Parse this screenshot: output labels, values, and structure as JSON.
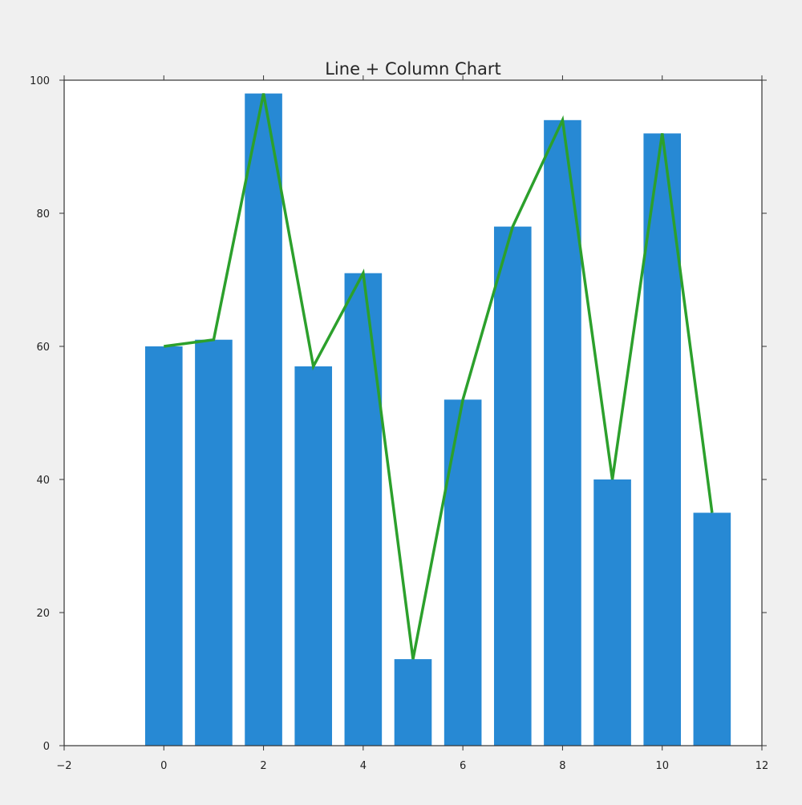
{
  "chart_data": {
    "type": "bar",
    "title": "Line + Column Chart",
    "xlabel": "",
    "ylabel": "",
    "xlim": [
      -2,
      12
    ],
    "ylim": [
      0,
      100
    ],
    "x_ticks": [
      -2,
      0,
      2,
      4,
      6,
      8,
      10,
      12
    ],
    "y_ticks": [
      0,
      20,
      40,
      60,
      80,
      100
    ],
    "grid": false,
    "legend": "none",
    "x": [
      0,
      1,
      2,
      3,
      4,
      5,
      6,
      7,
      8,
      9,
      10,
      11
    ],
    "series": [
      {
        "type": "bar",
        "values": [
          60,
          61,
          98,
          57,
          71,
          13,
          52,
          78,
          94,
          40,
          92,
          35
        ],
        "color": "#2789d4"
      },
      {
        "type": "line",
        "values": [
          60,
          61,
          98,
          57,
          71,
          13,
          52,
          78,
          94,
          40,
          92,
          35
        ],
        "color": "#2ca02c"
      }
    ]
  }
}
